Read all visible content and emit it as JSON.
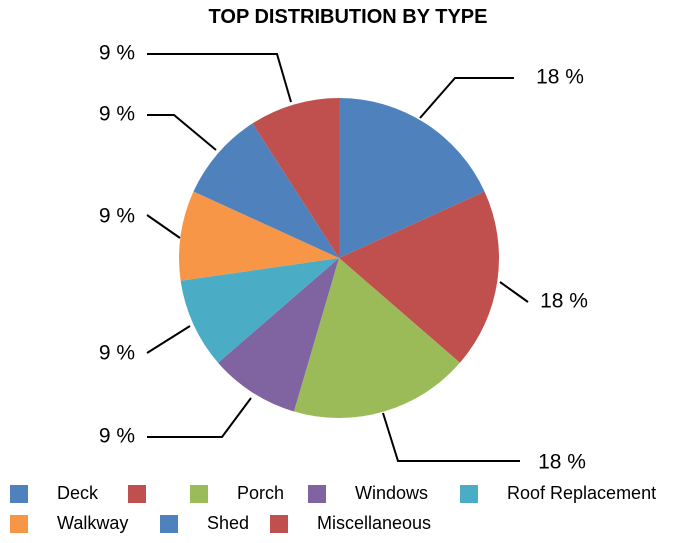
{
  "chart_data": {
    "type": "pie",
    "title": "TOP DISTRIBUTION BY TYPE",
    "slices": [
      {
        "name": "Deck",
        "value": 18,
        "label": "18 %",
        "color": "#4f81bd"
      },
      {
        "name": "",
        "value": 18,
        "label": "18 %",
        "color": "#c0504d"
      },
      {
        "name": "Porch",
        "value": 18,
        "label": "18 %",
        "color": "#9bbb59"
      },
      {
        "name": "Windows",
        "value": 9,
        "label": "9 %",
        "color": "#8064a2"
      },
      {
        "name": "Roof Replacement",
        "value": 9,
        "label": "9 %",
        "color": "#4bacc6"
      },
      {
        "name": "Walkway",
        "value": 9,
        "label": "9 %",
        "color": "#f79646"
      },
      {
        "name": "Shed",
        "value": 9,
        "label": "9 %",
        "color": "#4f81bd"
      },
      {
        "name": "Miscellaneous",
        "value": 9,
        "label": "9 %",
        "color": "#c0504d"
      }
    ],
    "legend_position": "bottom",
    "start_angle": "12 o'clock",
    "direction": "clockwise"
  }
}
